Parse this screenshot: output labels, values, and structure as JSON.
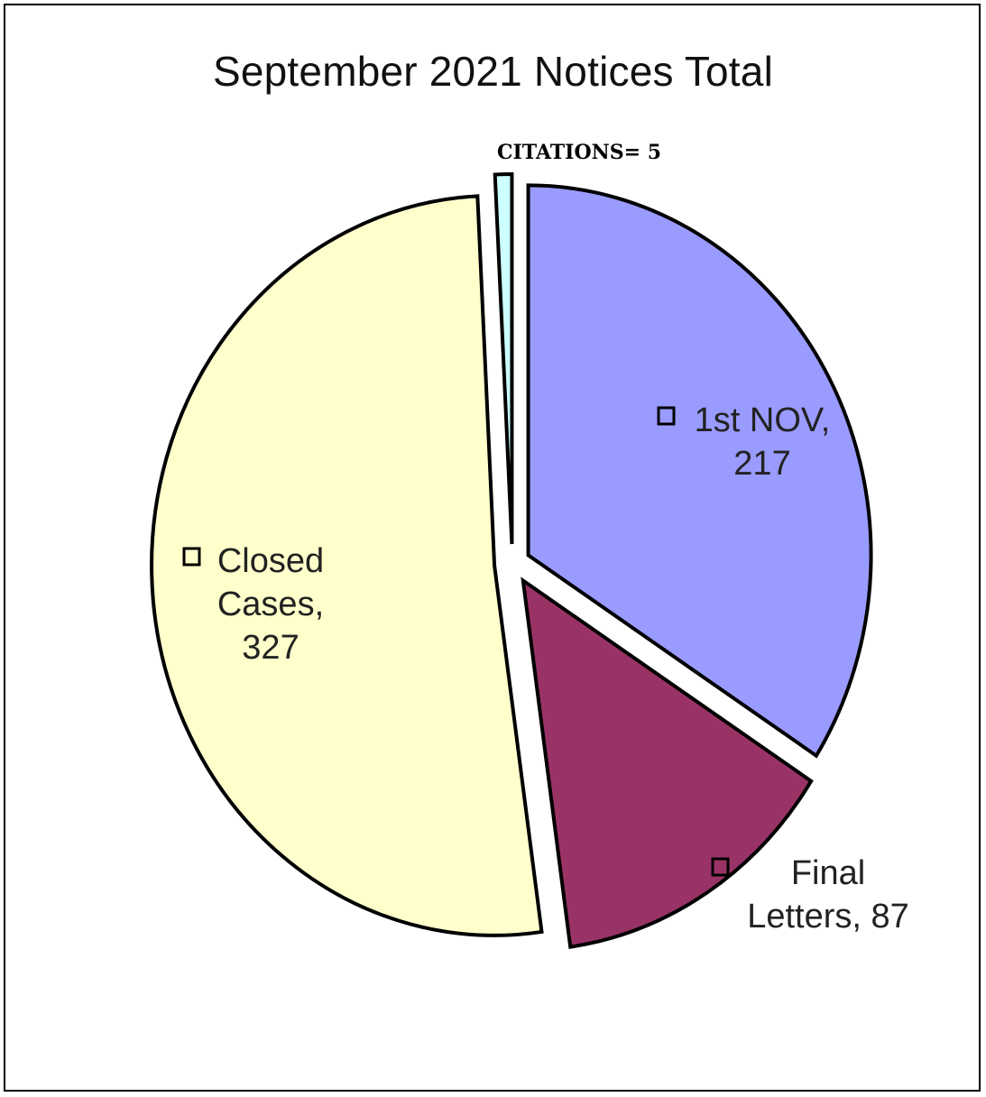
{
  "chart_data": {
    "type": "pie",
    "title": "September 2021 Notices Total",
    "slices": [
      {
        "name": "1st NOV",
        "value": 217,
        "color": "#9a9bff",
        "label_lines": [
          "1st NOV,",
          "217"
        ]
      },
      {
        "name": "Final Letters",
        "value": 87,
        "color": "#993366",
        "label_lines": [
          "Final",
          "Letters, 87"
        ]
      },
      {
        "name": "Closed Cases",
        "value": 327,
        "color": "#ffffcc",
        "label_lines": [
          "Closed",
          "Cases,",
          "327"
        ]
      },
      {
        "name": "CITATIONS",
        "value": 5,
        "color": "#ccffff",
        "label_lines": [
          "CITATIONS= 5"
        ]
      }
    ],
    "exploded": true,
    "legend": "none"
  }
}
